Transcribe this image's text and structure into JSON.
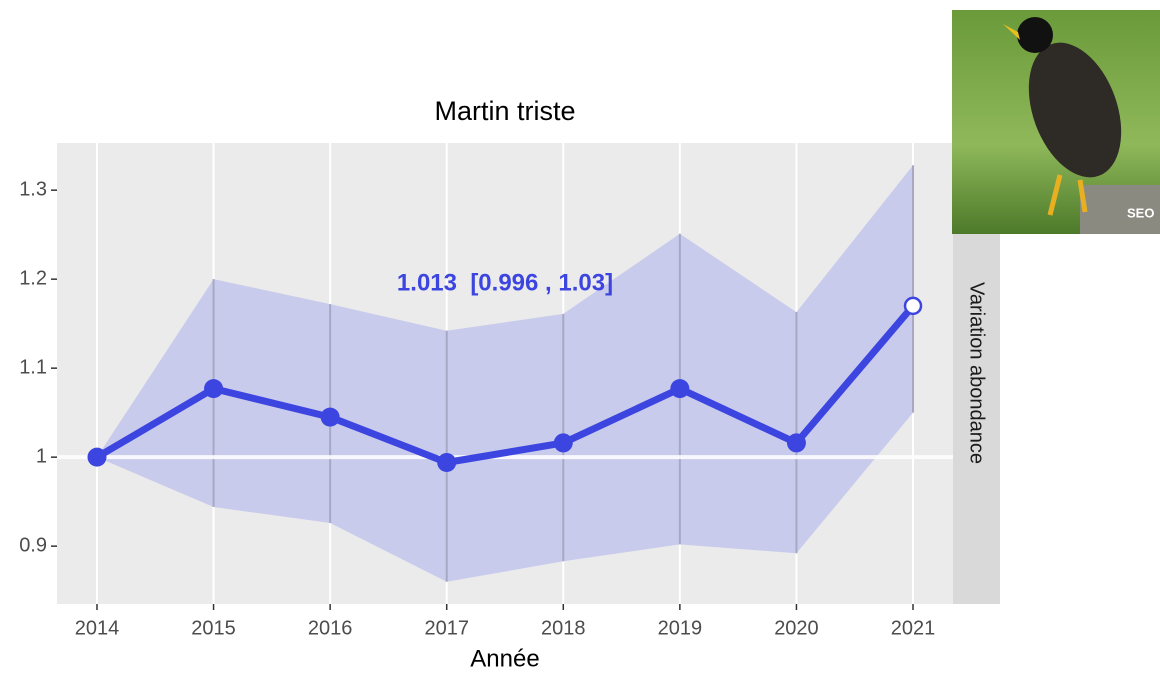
{
  "chart_data": {
    "type": "line",
    "title": "Martin triste",
    "xlabel": "Année",
    "strip_label": "Variation abondance",
    "annotation": "1.013  [0.996 , 1.03]",
    "photo_credit": "SEO",
    "x": [
      2014,
      2015,
      2016,
      2017,
      2018,
      2019,
      2020,
      2021
    ],
    "values": [
      1.0,
      1.077,
      1.045,
      0.994,
      1.016,
      1.077,
      1.016,
      1.17
    ],
    "lower": [
      1.0,
      0.944,
      0.926,
      0.86,
      0.883,
      0.902,
      0.892,
      1.05
    ],
    "upper": [
      1.0,
      1.2,
      1.172,
      1.142,
      1.161,
      1.251,
      1.163,
      1.328
    ],
    "color": "#3d45e0",
    "band_color": "#c5c8ec",
    "last_point_fill": "#ffffff",
    "reference_line": 1.0,
    "xlim": [
      2013.657,
      2021.343
    ],
    "xticks": [
      2014,
      2015,
      2016,
      2017,
      2018,
      2019,
      2020,
      2021
    ],
    "ylim": [
      0.835,
      1.353
    ],
    "yticks": [
      0.9,
      1.0,
      1.1,
      1.2,
      1.3
    ],
    "grid": "x"
  }
}
